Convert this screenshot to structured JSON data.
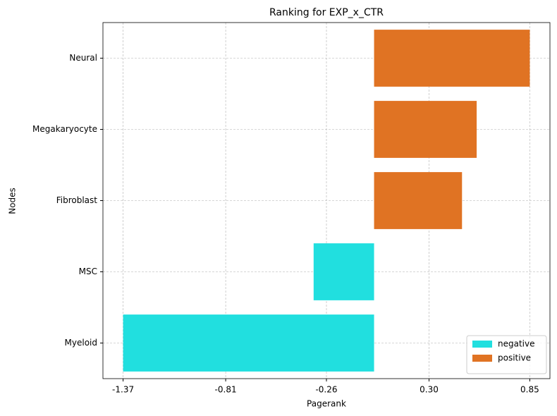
{
  "chart_data": {
    "type": "bar",
    "orientation": "horizontal",
    "title": "Ranking for EXP_x_CTR",
    "x_label": "Pagerank",
    "y_label": "Nodes",
    "categories": [
      "Myeloid",
      "MSC",
      "Fibroblast",
      "Megakaryocyte",
      "Neural"
    ],
    "series": [
      {
        "name": "negative",
        "color": "#21dfdf",
        "values": [
          -1.37,
          -0.33,
          null,
          null,
          null
        ]
      },
      {
        "name": "positive",
        "color": "#e07323",
        "values": [
          null,
          null,
          0.48,
          0.56,
          0.85
        ]
      }
    ],
    "xlim": [
      -1.48,
      0.96
    ],
    "xticks": [
      -1.37,
      -0.81,
      -0.26,
      {
        "value": 0.3,
        "label": "0.30"
      },
      0.85
    ],
    "grid": true,
    "legend": "lower right"
  }
}
